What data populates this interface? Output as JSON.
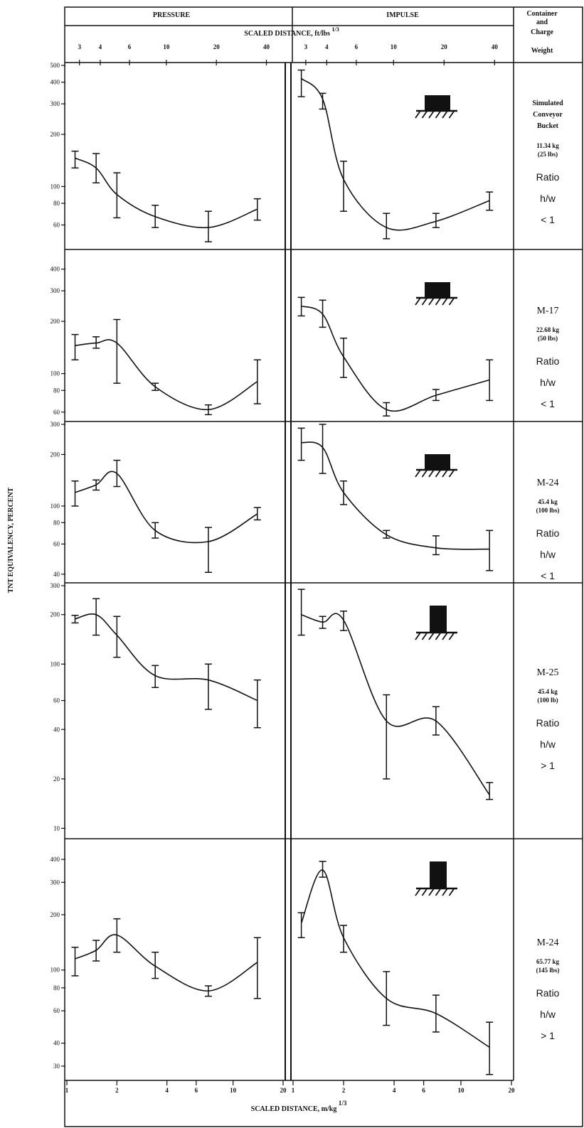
{
  "header": {
    "pressure_label": "PRESSURE",
    "impulse_label": "IMPULSE",
    "scaled_distance_ft_label": "SCALED DISTANCE, ft/lbs",
    "scaled_distance_ft_exponent": "1/3",
    "container_label_lines": [
      "Container",
      "and",
      "Charge",
      "Weight"
    ],
    "ft_ticks": [
      "3",
      "4",
      "6",
      "10",
      "20",
      "40"
    ]
  },
  "axes": {
    "y_label": "TNT EQUIVALENCY, PERCENT",
    "x_label": "SCALED DISTANCE, m/kg",
    "x_exponent": "1/3",
    "x_tick_labels_pressure": [
      "1",
      "2",
      "4",
      "6",
      "10",
      "20"
    ],
    "x_tick_labels_impulse": [
      "1",
      "2",
      "4",
      "6",
      "10",
      "20"
    ]
  },
  "rows": [
    {
      "name_lines": [
        "Simulated",
        "Conveyor",
        "Bucket"
      ],
      "weight_lines": [
        "11.34 kg",
        "(25 lbs)"
      ],
      "ratio_label": "Ratio",
      "ratio_var": "h/w",
      "ratio_value": "< 1"
    },
    {
      "name_lines": [
        "M-17"
      ],
      "weight_lines": [
        "22.68 kg",
        "(50 lbs)"
      ],
      "ratio_label": "Ratio",
      "ratio_var": "h/w",
      "ratio_value": "< 1"
    },
    {
      "name_lines": [
        "M-24"
      ],
      "weight_lines": [
        "45.4 kg",
        "(100 lbs)"
      ],
      "ratio_label": "Ratio",
      "ratio_var": "h/w",
      "ratio_value": "< 1"
    },
    {
      "name_lines": [
        "M-25"
      ],
      "weight_lines": [
        "45.4 kg",
        "(100 lb)"
      ],
      "ratio_label": "Ratio",
      "ratio_var": "h/w",
      "ratio_value": "> 1"
    },
    {
      "name_lines": [
        "M-24"
      ],
      "weight_lines": [
        "65.77 kg",
        "(145 lbs)"
      ],
      "ratio_label": "Ratio",
      "ratio_var": "h/w",
      "ratio_value": "> 1"
    }
  ],
  "chart_data": [
    {
      "type": "line",
      "row": 0,
      "panel": "pressure",
      "icon": "wide",
      "ylim": [
        45,
        500
      ],
      "y_tick_labels": [
        "500",
        "400",
        "300",
        "200",
        "100",
        "80",
        "60"
      ],
      "y_tick_values": [
        500,
        400,
        300,
        200,
        100,
        80,
        60
      ],
      "points": [
        {
          "x": 1.12,
          "y": 146,
          "lo": 128,
          "hi": 160
        },
        {
          "x": 1.5,
          "y": 128,
          "lo": 105,
          "hi": 155
        },
        {
          "x": 2.0,
          "y": 90,
          "lo": 66,
          "hi": 120
        },
        {
          "x": 3.4,
          "y": 67,
          "lo": 58,
          "hi": 78
        },
        {
          "x": 7.1,
          "y": 58,
          "lo": 48,
          "hi": 72
        },
        {
          "x": 14.0,
          "y": 74,
          "lo": 64,
          "hi": 85
        }
      ]
    },
    {
      "type": "line",
      "row": 0,
      "panel": "impulse",
      "icon": "wide",
      "ylim": [
        45,
        500
      ],
      "points": [
        {
          "x": 1.12,
          "y": 420,
          "lo": 330,
          "hi": 470
        },
        {
          "x": 1.5,
          "y": 320,
          "lo": 280,
          "hi": 345
        },
        {
          "x": 2.0,
          "y": 110,
          "lo": 72,
          "hi": 140
        },
        {
          "x": 3.6,
          "y": 58,
          "lo": 50,
          "hi": 70
        },
        {
          "x": 7.1,
          "y": 63,
          "lo": 58,
          "hi": 70
        },
        {
          "x": 14.8,
          "y": 83,
          "lo": 73,
          "hi": 93
        }
      ]
    },
    {
      "type": "line",
      "row": 1,
      "panel": "pressure",
      "icon": "wide",
      "ylim": [
        55,
        500
      ],
      "y_tick_labels": [
        "400",
        "300",
        "200",
        "100",
        "80",
        "60"
      ],
      "y_tick_values": [
        400,
        300,
        200,
        100,
        80,
        60
      ],
      "points": [
        {
          "x": 1.12,
          "y": 145,
          "lo": 120,
          "hi": 168
        },
        {
          "x": 1.5,
          "y": 150,
          "lo": 140,
          "hi": 163
        },
        {
          "x": 2.0,
          "y": 150,
          "lo": 88,
          "hi": 205
        },
        {
          "x": 3.4,
          "y": 84,
          "lo": 80,
          "hi": 88
        },
        {
          "x": 7.1,
          "y": 62,
          "lo": 58,
          "hi": 66
        },
        {
          "x": 14.0,
          "y": 90,
          "lo": 67,
          "hi": 120
        }
      ]
    },
    {
      "type": "line",
      "row": 1,
      "panel": "impulse",
      "icon": "wide",
      "ylim": [
        55,
        500
      ],
      "points": [
        {
          "x": 1.12,
          "y": 245,
          "lo": 215,
          "hi": 275
        },
        {
          "x": 1.5,
          "y": 220,
          "lo": 185,
          "hi": 265
        },
        {
          "x": 2.0,
          "y": 125,
          "lo": 95,
          "hi": 160
        },
        {
          "x": 3.6,
          "y": 62,
          "lo": 57,
          "hi": 68
        },
        {
          "x": 7.1,
          "y": 75,
          "lo": 70,
          "hi": 81
        },
        {
          "x": 14.8,
          "y": 92,
          "lo": 70,
          "hi": 120
        }
      ]
    },
    {
      "type": "line",
      "row": 2,
      "panel": "pressure",
      "icon": "wide",
      "ylim": [
        37,
        300
      ],
      "y_tick_labels": [
        "300",
        "200",
        "100",
        "80",
        "60",
        "40"
      ],
      "y_tick_values": [
        300,
        200,
        100,
        80,
        60,
        40
      ],
      "points": [
        {
          "x": 1.12,
          "y": 120,
          "lo": 100,
          "hi": 140
        },
        {
          "x": 1.5,
          "y": 133,
          "lo": 124,
          "hi": 142
        },
        {
          "x": 2.0,
          "y": 155,
          "lo": 130,
          "hi": 185
        },
        {
          "x": 3.4,
          "y": 72,
          "lo": 65,
          "hi": 80
        },
        {
          "x": 7.1,
          "y": 62,
          "lo": 41,
          "hi": 75
        },
        {
          "x": 14.0,
          "y": 90,
          "lo": 83,
          "hi": 98
        }
      ]
    },
    {
      "type": "line",
      "row": 2,
      "panel": "impulse",
      "icon": "wide",
      "ylim": [
        37,
        300
      ],
      "points": [
        {
          "x": 1.12,
          "y": 235,
          "lo": 185,
          "hi": 285
        },
        {
          "x": 1.5,
          "y": 220,
          "lo": 155,
          "hi": 300
        },
        {
          "x": 2.0,
          "y": 120,
          "lo": 102,
          "hi": 140
        },
        {
          "x": 3.6,
          "y": 68,
          "lo": 65,
          "hi": 72
        },
        {
          "x": 7.1,
          "y": 57,
          "lo": 52,
          "hi": 67
        },
        {
          "x": 14.8,
          "y": 56,
          "lo": 42,
          "hi": 72
        }
      ]
    },
    {
      "type": "line",
      "row": 3,
      "panel": "pressure",
      "icon": "tall",
      "ylim": [
        9,
        300
      ],
      "y_tick_labels": [
        "300",
        "200",
        "100",
        "60",
        "40",
        "20",
        "10"
      ],
      "y_tick_values": [
        300,
        200,
        100,
        60,
        40,
        20,
        10
      ],
      "points": [
        {
          "x": 1.12,
          "y": 188,
          "lo": 178,
          "hi": 198
        },
        {
          "x": 1.5,
          "y": 200,
          "lo": 150,
          "hi": 250
        },
        {
          "x": 2.0,
          "y": 150,
          "lo": 110,
          "hi": 195
        },
        {
          "x": 3.4,
          "y": 85,
          "lo": 72,
          "hi": 98
        },
        {
          "x": 7.1,
          "y": 80,
          "lo": 53,
          "hi": 100
        },
        {
          "x": 14.0,
          "y": 60,
          "lo": 41,
          "hi": 80
        }
      ]
    },
    {
      "type": "line",
      "row": 3,
      "panel": "impulse",
      "icon": "tall",
      "ylim": [
        9,
        300
      ],
      "points": [
        {
          "x": 1.12,
          "y": 200,
          "lo": 150,
          "hi": 285
        },
        {
          "x": 1.5,
          "y": 180,
          "lo": 165,
          "hi": 195
        },
        {
          "x": 2.0,
          "y": 185,
          "lo": 160,
          "hi": 210
        },
        {
          "x": 3.6,
          "y": 45,
          "lo": 20,
          "hi": 65
        },
        {
          "x": 7.1,
          "y": 45,
          "lo": 37,
          "hi": 55
        },
        {
          "x": 14.8,
          "y": 16,
          "lo": 15,
          "hi": 19
        }
      ]
    },
    {
      "type": "line",
      "row": 4,
      "panel": "pressure",
      "icon": "tall",
      "ylim": [
        26,
        500
      ],
      "y_tick_labels": [
        "400",
        "300",
        "200",
        "100",
        "80",
        "60",
        "40",
        "30"
      ],
      "y_tick_values": [
        400,
        300,
        200,
        100,
        80,
        60,
        40,
        30
      ],
      "points": [
        {
          "x": 1.12,
          "y": 115,
          "lo": 93,
          "hi": 133
        },
        {
          "x": 1.5,
          "y": 128,
          "lo": 112,
          "hi": 145
        },
        {
          "x": 2.0,
          "y": 155,
          "lo": 125,
          "hi": 190
        },
        {
          "x": 3.4,
          "y": 105,
          "lo": 90,
          "hi": 125
        },
        {
          "x": 7.1,
          "y": 77,
          "lo": 72,
          "hi": 82
        },
        {
          "x": 14.0,
          "y": 110,
          "lo": 70,
          "hi": 150
        }
      ]
    },
    {
      "type": "line",
      "row": 4,
      "panel": "impulse",
      "icon": "tall",
      "ylim": [
        26,
        500
      ],
      "points": [
        {
          "x": 1.12,
          "y": 180,
          "lo": 150,
          "hi": 205
        },
        {
          "x": 1.5,
          "y": 350,
          "lo": 320,
          "hi": 390
        },
        {
          "x": 2.0,
          "y": 150,
          "lo": 125,
          "hi": 175
        },
        {
          "x": 3.6,
          "y": 70,
          "lo": 50,
          "hi": 98
        },
        {
          "x": 7.1,
          "y": 58,
          "lo": 46,
          "hi": 73
        },
        {
          "x": 14.8,
          "y": 38,
          "lo": 27,
          "hi": 52
        }
      ]
    }
  ]
}
